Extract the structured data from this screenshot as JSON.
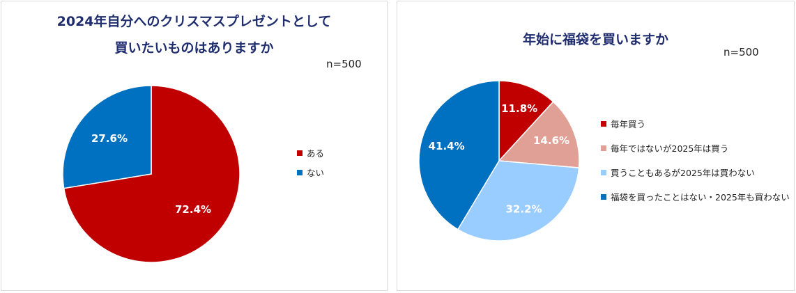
{
  "chart_data": [
    {
      "type": "pie",
      "title": [
        "2024年自分へのクリスマスプレゼントとして",
        "買いたいものはありますか"
      ],
      "n_label": "n=500",
      "categories": [
        "ある",
        "ない"
      ],
      "values": [
        72.4,
        27.6
      ],
      "value_labels": [
        "72.4%",
        "27.6%"
      ],
      "colors": [
        "#c00000",
        "#0070c0"
      ],
      "legend_position": "right"
    },
    {
      "type": "pie",
      "title": [
        "年始に福袋を買いますか"
      ],
      "n_label": "n=500",
      "categories": [
        "毎年買う",
        "毎年ではないが2025年は買う",
        "買うこともあるが2025年は買わない",
        "福袋を買ったことはない・2025年も買わない"
      ],
      "values": [
        11.8,
        14.6,
        32.2,
        41.4
      ],
      "value_labels": [
        "11.8%",
        "14.6%",
        "32.2%",
        "41.4%"
      ],
      "colors": [
        "#c00000",
        "#e0a095",
        "#99ccff",
        "#0070c0"
      ],
      "legend_position": "right"
    }
  ]
}
